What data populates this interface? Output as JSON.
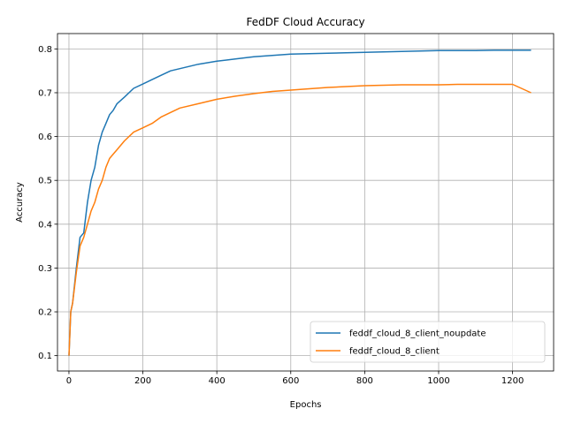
{
  "chart_data": {
    "type": "line",
    "title": "FedDF Cloud Accuracy",
    "xlabel": "Epochs",
    "ylabel": "Accuracy",
    "xlim": [
      -31,
      1311
    ],
    "ylim": [
      0.065,
      0.835
    ],
    "xticks": [
      0,
      200,
      400,
      600,
      800,
      1000,
      1200
    ],
    "yticks": [
      0.1,
      0.2,
      0.3,
      0.4,
      0.5,
      0.6,
      0.7,
      0.8
    ],
    "grid": true,
    "legend_position": "lower-right",
    "series": [
      {
        "name": "feddf_cloud_8_client_noupdate",
        "color": "#1f77b4",
        "x": [
          0,
          5,
          10,
          20,
          30,
          40,
          50,
          60,
          70,
          80,
          90,
          100,
          110,
          120,
          130,
          150,
          175,
          200,
          225,
          250,
          275,
          300,
          350,
          400,
          450,
          500,
          550,
          600,
          650,
          700,
          750,
          800,
          850,
          900,
          950,
          1000,
          1050,
          1100,
          1150,
          1200,
          1250
        ],
        "y": [
          0.1,
          0.2,
          0.22,
          0.3,
          0.37,
          0.38,
          0.45,
          0.5,
          0.53,
          0.58,
          0.61,
          0.63,
          0.65,
          0.66,
          0.675,
          0.69,
          0.71,
          0.72,
          0.73,
          0.74,
          0.75,
          0.755,
          0.765,
          0.772,
          0.777,
          0.782,
          0.785,
          0.788,
          0.789,
          0.79,
          0.791,
          0.792,
          0.793,
          0.794,
          0.795,
          0.796,
          0.796,
          0.796,
          0.797,
          0.797,
          0.797
        ]
      },
      {
        "name": "feddf_cloud_8_client",
        "color": "#ff7f0e",
        "x": [
          0,
          5,
          10,
          20,
          30,
          40,
          50,
          60,
          70,
          80,
          90,
          100,
          110,
          120,
          130,
          150,
          175,
          200,
          225,
          250,
          275,
          300,
          350,
          400,
          450,
          500,
          550,
          600,
          650,
          700,
          750,
          800,
          850,
          900,
          950,
          1000,
          1050,
          1100,
          1150,
          1200,
          1250
        ],
        "y": [
          0.1,
          0.2,
          0.22,
          0.29,
          0.35,
          0.37,
          0.4,
          0.43,
          0.45,
          0.48,
          0.5,
          0.53,
          0.55,
          0.56,
          0.57,
          0.59,
          0.61,
          0.62,
          0.63,
          0.645,
          0.655,
          0.665,
          0.675,
          0.685,
          0.692,
          0.698,
          0.703,
          0.706,
          0.709,
          0.712,
          0.714,
          0.716,
          0.717,
          0.718,
          0.718,
          0.718,
          0.719,
          0.719,
          0.719,
          0.719,
          0.7
        ]
      }
    ]
  }
}
